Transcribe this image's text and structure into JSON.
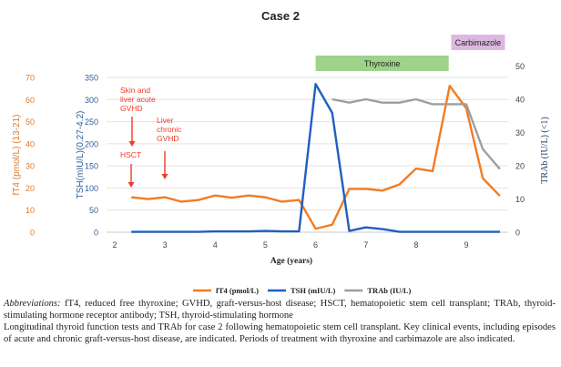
{
  "chart_data": {
    "type": "line",
    "title": "Case 2",
    "xlabel": "Age (years)",
    "xlim": [
      2,
      10
    ],
    "xticks": [
      "2",
      "3",
      "4",
      "5",
      "6",
      "7",
      "8",
      "9"
    ],
    "axes": {
      "left_outer": {
        "label": "fT4 (pmol/L) (13-21)",
        "ylim": [
          0,
          70
        ],
        "ticks": [
          "0",
          "10",
          "20",
          "30",
          "40",
          "50",
          "60",
          "70"
        ],
        "color": "#e07a2c"
      },
      "left_inner": {
        "label": "TSH(mIU/L)(0.27-4.2)",
        "ylim": [
          0,
          350
        ],
        "ticks": [
          "0",
          "50",
          "100",
          "150",
          "200",
          "250",
          "300",
          "350"
        ],
        "color": "#2e5f9a"
      },
      "right": {
        "label": "TRAb (IU/L) (<1)",
        "ylim": [
          0,
          50
        ],
        "ticks": [
          "0",
          "10",
          "20",
          "30",
          "40",
          "50"
        ],
        "color": "#1f3f66"
      }
    },
    "grid": true,
    "legend_position": "bottom",
    "series": [
      {
        "name": "fT4 (pmol/L)",
        "axis": "left_outer",
        "color": "#f47b20",
        "x": [
          2.33,
          2.67,
          3,
          3.33,
          3.67,
          4,
          4.33,
          4.67,
          5,
          5.33,
          5.67,
          6,
          6.33,
          6.67,
          7,
          7.33,
          7.67,
          8,
          8.33,
          8.67,
          9,
          9.33,
          9.67
        ],
        "y": [
          15.8,
          15,
          15.8,
          13.8,
          14.6,
          16.6,
          15.6,
          16.6,
          15.8,
          13.8,
          14.6,
          1.6,
          3.4,
          19.6,
          19.6,
          18.8,
          21.6,
          28.8,
          27.6,
          66.2,
          56,
          24.4,
          16.4
        ]
      },
      {
        "name": "TSH (mIU/L)",
        "axis": "left_inner",
        "color": "#1f5fbf",
        "x": [
          2.33,
          2.67,
          3,
          3.33,
          3.67,
          4,
          4.33,
          4.67,
          5,
          5.33,
          5.67,
          6,
          6.33,
          6.67,
          7,
          7.33,
          7.67,
          8,
          8.33,
          8.67,
          9,
          9.33,
          9.67
        ],
        "y": [
          1,
          1,
          1,
          1,
          1,
          2,
          2,
          2,
          3,
          2,
          2,
          335,
          270,
          3,
          11,
          7,
          1,
          1,
          1,
          1,
          1,
          1,
          1
        ]
      },
      {
        "name": "TRAb (IU/L)",
        "axis": "right",
        "color": "#9e9e9e",
        "x": [
          6.33,
          6.67,
          7,
          7.33,
          7.67,
          8,
          8.33,
          8.67,
          9,
          9.33,
          9.67
        ],
        "y": [
          40,
          39,
          40,
          39,
          39,
          40,
          38.5,
          38.5,
          38.5,
          25,
          19
        ]
      }
    ],
    "annotations": [
      {
        "lines": [
          "Skin and",
          "liver acute",
          "GVHD"
        ],
        "x": 2.33
      },
      {
        "lines": [
          "HSCT"
        ],
        "x": 2.33
      },
      {
        "lines": [
          "Liver",
          "chronic",
          "GVHD"
        ],
        "x": 3
      }
    ],
    "treatments": [
      {
        "label": "Thyroxine",
        "start": 6,
        "end": 8.65,
        "color": "#9dd38a"
      },
      {
        "label": "Carbimazole",
        "start": 8.7,
        "end": 9.77,
        "color": "#dcb8e0"
      }
    ]
  },
  "caption": {
    "abbr_label": "Abbreviations:",
    "abbr_text": " fT4, reduced free thyroxine; GVHD, graft-versus-host disease; HSCT, hematopoietic stem cell transplant; TRAb, thyroid-stimulating hormone receptor antibody; TSH, thyroid-stimulating hormone",
    "description": "Longitudinal thyroid function tests and TRAb for case 2 following hematopoietic stem cell transplant. Key clinical events, including episodes of acute and chronic graft-versus-host disease, are indicated. Periods of treatment with thyroxine and carbimazole are also indicated."
  }
}
